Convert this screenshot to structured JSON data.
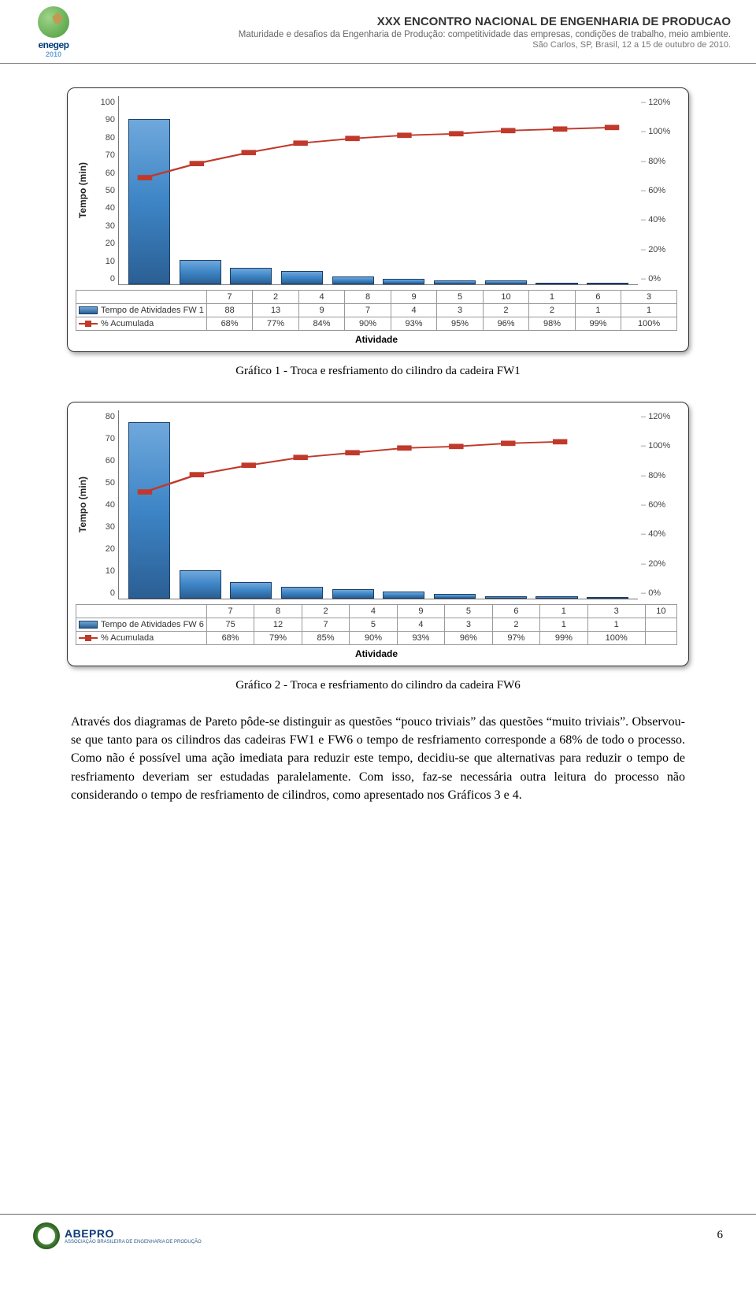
{
  "header": {
    "logo_main": "enegep",
    "logo_sub": "2010",
    "title": "XXX ENCONTRO NACIONAL DE ENGENHARIA DE PRODUCAO",
    "sub1": "Maturidade e desafios da Engenharia de Produção: competitividade das empresas, condições de trabalho, meio ambiente.",
    "sub2": "São Carlos, SP, Brasil, 12 a 15 de outubro de 2010."
  },
  "chart1": {
    "type": "pareto",
    "ylabel": "Tempo (min)",
    "xlabel": "Atividade",
    "ylim": [
      0,
      100
    ],
    "ytick_step": 10,
    "pct_ticks": [
      "120%",
      "100%",
      "80%",
      "60%",
      "40%",
      "20%",
      "0%"
    ],
    "categories": [
      "7",
      "2",
      "4",
      "8",
      "9",
      "5",
      "10",
      "1",
      "6",
      "3"
    ],
    "series_bar_name": "Tempo de Atividades FW 1",
    "bar_values": [
      88,
      13,
      9,
      7,
      4,
      3,
      2,
      2,
      1,
      1
    ],
    "series_line_name": "% Acumulada",
    "cum_values": [
      "68%",
      "77%",
      "84%",
      "90%",
      "93%",
      "95%",
      "96%",
      "98%",
      "99%",
      "100%"
    ],
    "cum_numeric": [
      68,
      77,
      84,
      90,
      93,
      95,
      96,
      98,
      99,
      100
    ],
    "bar_color": "#3d85c6",
    "line_color": "#c0392b",
    "background_color": "#ffffff"
  },
  "caption1": "Gráfico 1 - Troca e resfriamento do cilindro da cadeira FW1",
  "chart2": {
    "type": "pareto",
    "ylabel": "Tempo (min)",
    "xlabel": "Atividade",
    "ylim": [
      0,
      80
    ],
    "ytick_step": 10,
    "pct_ticks": [
      "120%",
      "100%",
      "80%",
      "60%",
      "40%",
      "20%",
      "0%"
    ],
    "categories": [
      "7",
      "8",
      "2",
      "4",
      "9",
      "5",
      "6",
      "1",
      "3",
      "10"
    ],
    "series_bar_name": "Tempo de Atividades FW 6",
    "bar_values": [
      75,
      12,
      7,
      5,
      4,
      3,
      2,
      1,
      1,
      null
    ],
    "series_line_name": "% Acumulada",
    "cum_values": [
      "68%",
      "79%",
      "85%",
      "90%",
      "93%",
      "96%",
      "97%",
      "99%",
      "100%",
      ""
    ],
    "cum_numeric": [
      68,
      79,
      85,
      90,
      93,
      96,
      97,
      99,
      100
    ],
    "bar_color": "#3d85c6",
    "line_color": "#c0392b",
    "background_color": "#ffffff"
  },
  "caption2": "Gráfico 2 - Troca e resfriamento do cilindro da cadeira FW6",
  "paragraph": "Através dos diagramas de Pareto pôde-se distinguir as questões “pouco triviais” das questões “muito triviais”. Observou-se que tanto para os cilindros das cadeiras FW1 e FW6 o tempo de resfriamento corresponde a 68% de todo o processo. Como não é possível uma ação imediata para reduzir este tempo, decidiu-se que alternativas para reduzir o tempo de resfriamento deveriam ser estudadas paralelamente. Com isso, faz-se necessária outra leitura do processo não considerando o tempo de resfriamento de cilindros, como apresentado nos Gráficos 3 e 4.",
  "footer": {
    "logo_text": "ABEPRO",
    "logo_sub": "ASSOCIAÇÃO BRASILEIRA DE\nENGENHARIA DE PRODUÇÃO",
    "page": "6"
  }
}
